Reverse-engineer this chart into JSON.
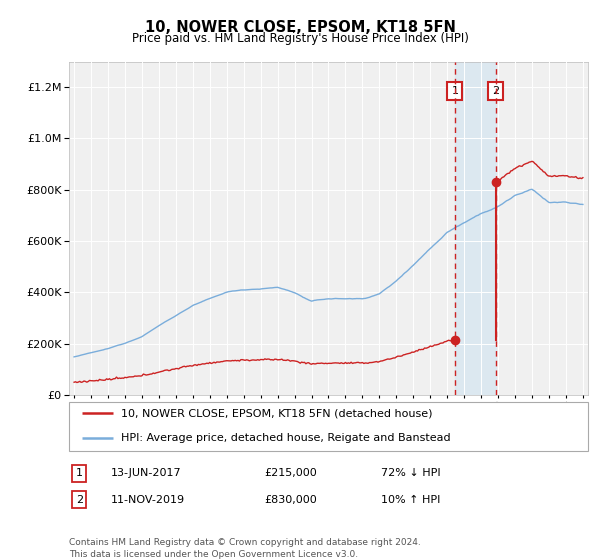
{
  "title": "10, NOWER CLOSE, EPSOM, KT18 5FN",
  "subtitle": "Price paid vs. HM Land Registry's House Price Index (HPI)",
  "hpi_label": "HPI: Average price, detached house, Reigate and Banstead",
  "property_label": "10, NOWER CLOSE, EPSOM, KT18 5FN (detached house)",
  "footer": "Contains HM Land Registry data © Crown copyright and database right 2024.\nThis data is licensed under the Open Government Licence v3.0.",
  "sale1_date": "13-JUN-2017",
  "sale1_price": 215000,
  "sale1_hpi_pct": "72% ↓ HPI",
  "sale2_date": "11-NOV-2019",
  "sale2_price": 830000,
  "sale2_hpi_pct": "10% ↑ HPI",
  "ylim_max": 1300000,
  "hpi_color": "#7aaddb",
  "property_color": "#cc2222",
  "sale1_year": 2017.45,
  "sale2_year": 2019.87,
  "shading_color": "#dce8f0",
  "bg_color": "#f0f0f0"
}
